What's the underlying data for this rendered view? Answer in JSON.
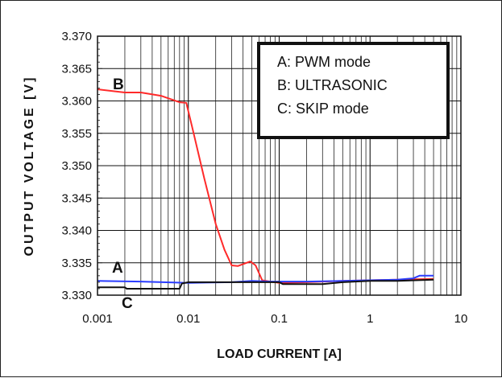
{
  "chart_data": {
    "type": "line",
    "xlabel": "LOAD CURRENT [A]",
    "ylabel": "OUTPUT VOLTAGE [V]",
    "x_scale": "log",
    "xlim": [
      0.001,
      10
    ],
    "ylim": [
      3.33,
      3.37
    ],
    "x_ticks": [
      "0.001",
      "0.01",
      "0.1",
      "1",
      "10"
    ],
    "y_ticks": [
      "3.330",
      "3.335",
      "3.340",
      "3.345",
      "3.350",
      "3.355",
      "3.360",
      "3.365",
      "3.370"
    ],
    "grid": true,
    "legend_position": "top-right",
    "legend": [
      "A: PWM mode",
      "B: ULTRASONIC",
      "C: SKIP mode"
    ],
    "series": [
      {
        "name": "B",
        "color": "#ff2a2a",
        "x": [
          0.001,
          0.0015,
          0.002,
          0.003,
          0.005,
          0.008,
          0.0095,
          0.011,
          0.015,
          0.02,
          0.025,
          0.03,
          0.035,
          0.04,
          0.048,
          0.055,
          0.065,
          0.08,
          0.1,
          0.2,
          0.5,
          1,
          2,
          5
        ],
        "y": [
          3.3618,
          3.3615,
          3.3613,
          3.3613,
          3.3608,
          3.3598,
          3.3597,
          3.356,
          3.348,
          3.341,
          3.337,
          3.3346,
          3.3345,
          3.3348,
          3.3352,
          3.3346,
          3.3323,
          3.3321,
          3.3319,
          3.332,
          3.3322,
          3.3323,
          3.3324,
          3.3325
        ]
      },
      {
        "name": "A",
        "color": "#2a3cff",
        "x": [
          0.001,
          0.003,
          0.01,
          0.03,
          0.05,
          0.08,
          0.1,
          0.2,
          0.5,
          1,
          2,
          3,
          3.5,
          5
        ],
        "y": [
          3.3322,
          3.3321,
          3.3319,
          3.332,
          3.3322,
          3.3321,
          3.3321,
          3.3321,
          3.3322,
          3.3323,
          3.3324,
          3.3326,
          3.333,
          3.333
        ]
      },
      {
        "name": "C",
        "color": "#111111",
        "x": [
          0.001,
          0.002,
          0.0021,
          0.003,
          0.005,
          0.008,
          0.0085,
          0.01,
          0.03,
          0.1,
          0.11,
          0.12,
          0.2,
          0.3,
          0.5,
          1,
          2,
          5
        ],
        "y": [
          3.3312,
          3.3312,
          3.331,
          3.331,
          3.331,
          3.331,
          3.3318,
          3.332,
          3.332,
          3.332,
          3.3317,
          3.3317,
          3.3317,
          3.3317,
          3.332,
          3.3322,
          3.3322,
          3.3324
        ]
      }
    ],
    "annotations": [
      "A",
      "B",
      "C"
    ]
  }
}
